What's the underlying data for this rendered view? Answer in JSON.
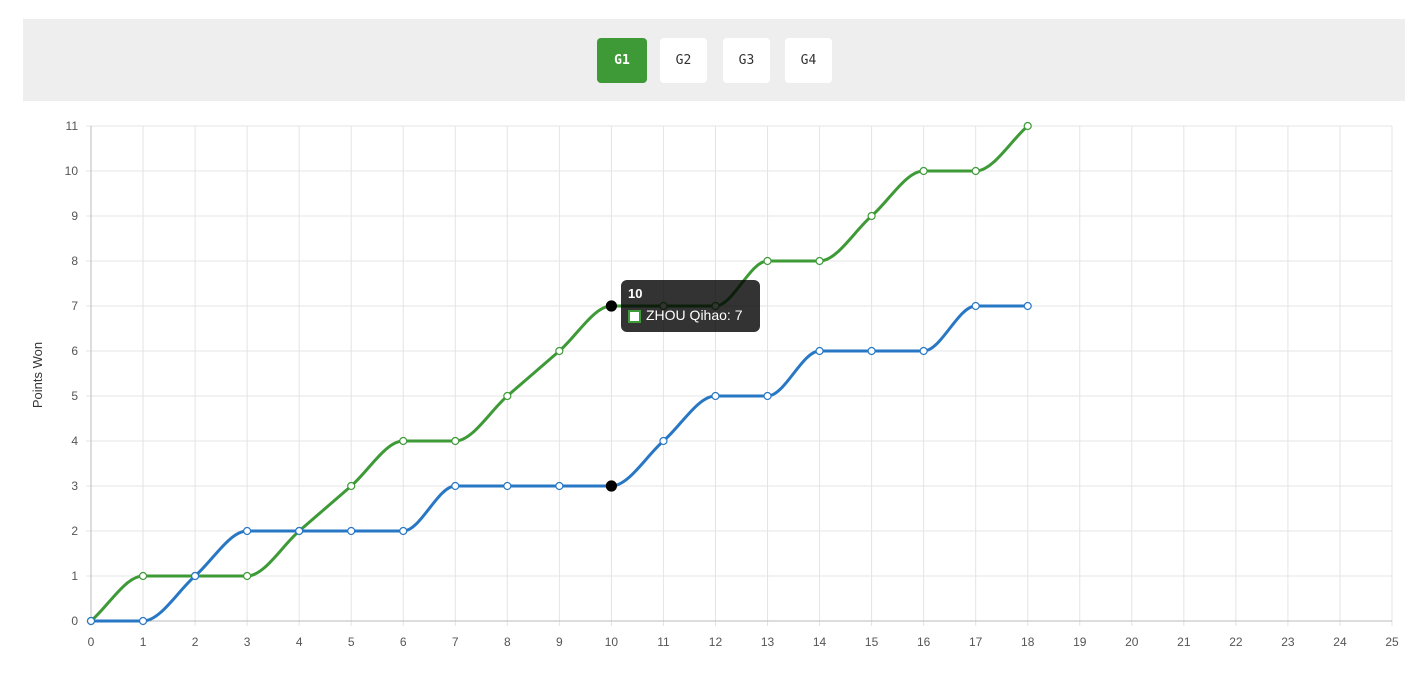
{
  "tabs": [
    {
      "label": "G1",
      "active": true
    },
    {
      "label": "G2",
      "active": false
    },
    {
      "label": "G3",
      "active": false
    },
    {
      "label": "G4",
      "active": false
    }
  ],
  "tooltip": {
    "title": "10",
    "body": "ZHOU Qihao: 7",
    "swatch_color": "#3d9a37"
  },
  "chart_data": {
    "type": "line",
    "ylabel": "Points Won",
    "xlabel": "",
    "xlim": [
      0,
      25
    ],
    "ylim": [
      0,
      11
    ],
    "x_ticks": [
      0,
      1,
      2,
      3,
      4,
      5,
      6,
      7,
      8,
      9,
      10,
      11,
      12,
      13,
      14,
      15,
      16,
      17,
      18,
      19,
      20,
      21,
      22,
      23,
      24,
      25
    ],
    "y_ticks": [
      0,
      1,
      2,
      3,
      4,
      5,
      6,
      7,
      8,
      9,
      10,
      11
    ],
    "grid": true,
    "highlight_x": 10,
    "series": [
      {
        "name": "ZHOU Qihao",
        "color": "#3d9a37",
        "x": [
          0,
          1,
          2,
          3,
          4,
          5,
          6,
          7,
          8,
          9,
          10,
          11,
          12,
          13,
          14,
          15,
          16,
          17,
          18
        ],
        "values": [
          0,
          1,
          1,
          1,
          2,
          3,
          4,
          4,
          5,
          6,
          7,
          7,
          7,
          8,
          8,
          9,
          10,
          10,
          11
        ]
      },
      {
        "name": "",
        "color": "#2877c5",
        "x": [
          0,
          1,
          2,
          3,
          4,
          5,
          6,
          7,
          8,
          9,
          10,
          11,
          12,
          13,
          14,
          15,
          16,
          17,
          18
        ],
        "values": [
          0,
          0,
          1,
          2,
          2,
          2,
          2,
          3,
          3,
          3,
          3,
          4,
          5,
          5,
          6,
          6,
          6,
          7,
          7
        ]
      }
    ]
  }
}
